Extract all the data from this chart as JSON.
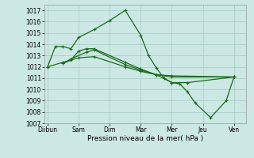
{
  "xlabel": "Pression niveau de la mer( hPa )",
  "ylim": [
    1007,
    1017.5
  ],
  "yticks": [
    1007,
    1008,
    1009,
    1010,
    1011,
    1012,
    1013,
    1014,
    1015,
    1016,
    1017
  ],
  "xtick_labels": [
    "Diibun",
    "Sam",
    "Dim",
    "Mar",
    "Mer",
    "Jeu",
    "Ven"
  ],
  "xtick_positions": [
    0,
    1,
    2,
    3,
    4,
    5,
    6
  ],
  "xlim": [
    -0.1,
    6.4
  ],
  "background_color": "#cce8e4",
  "grid_color": "#aaceca",
  "line_color": "#1a6b1a",
  "series": [
    [
      1012.0,
      1013.8,
      1013.8,
      1013.6,
      1014.6,
      1015.3,
      1016.1,
      1017.0,
      1014.8,
      1013.0,
      1011.9,
      1011.0,
      1010.6,
      1010.5,
      1009.8,
      1008.8,
      1007.5,
      1009.0,
      1011.1
    ],
    [
      1012.3,
      1012.6,
      1013.4,
      1013.6,
      1013.6,
      1012.4,
      1011.8,
      1011.3,
      1010.6,
      1010.6,
      1011.1
    ],
    [
      1012.3,
      1012.7,
      1013.3,
      1013.5,
      1012.2,
      1011.7,
      1011.3,
      1011.2,
      1011.1
    ],
    [
      1012.0,
      1012.4,
      1012.8,
      1012.9,
      1012.0,
      1011.6,
      1011.3,
      1011.1,
      1011.1
    ]
  ],
  "series_x": [
    [
      0,
      0.25,
      0.5,
      0.75,
      1.0,
      1.5,
      2.0,
      2.5,
      3.0,
      3.25,
      3.5,
      3.75,
      4.0,
      4.25,
      4.5,
      4.75,
      5.25,
      5.75,
      6.0
    ],
    [
      0.5,
      0.75,
      1.0,
      1.25,
      1.5,
      2.5,
      3.0,
      3.5,
      4.0,
      4.5,
      6.0
    ],
    [
      0.5,
      0.75,
      1.25,
      1.5,
      2.5,
      3.0,
      3.5,
      4.0,
      6.0
    ],
    [
      0.0,
      0.5,
      1.0,
      1.5,
      2.5,
      3.0,
      3.5,
      4.0,
      6.0
    ]
  ],
  "figsize": [
    3.2,
    2.0
  ],
  "dpi": 100
}
